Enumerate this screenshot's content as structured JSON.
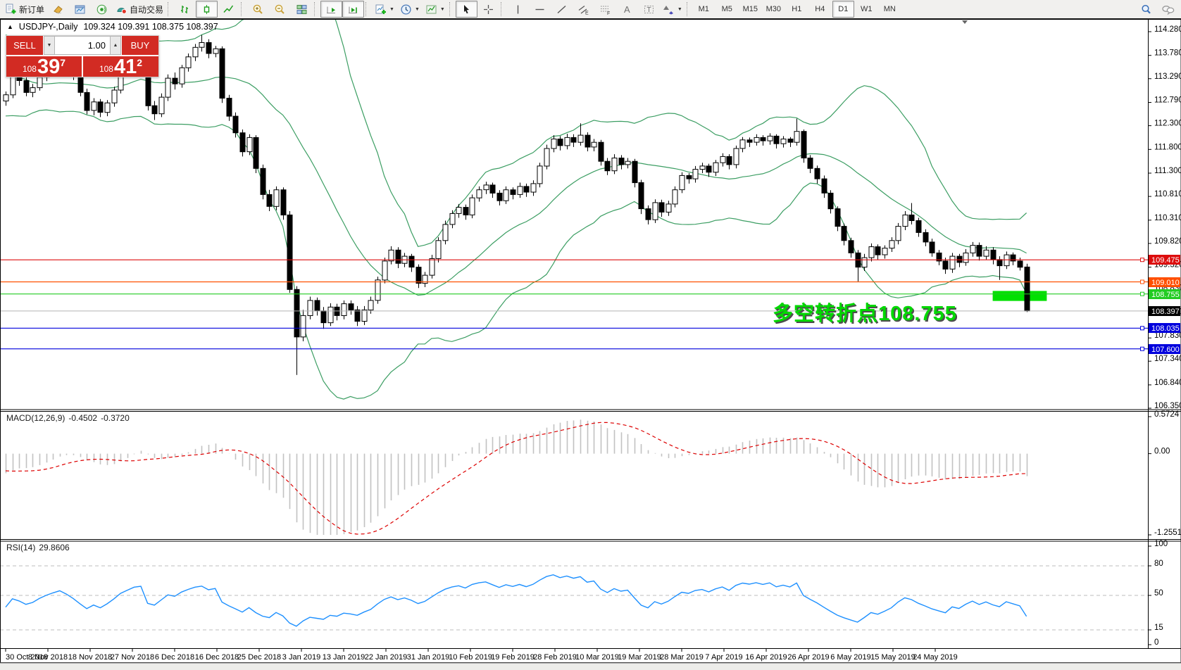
{
  "toolbar": {
    "new_order_label": "新订单",
    "autotrade_label": "自动交易",
    "timeframes": [
      "M1",
      "M5",
      "M15",
      "M30",
      "H1",
      "H4",
      "D1",
      "W1",
      "MN"
    ],
    "active_timeframe": "D1"
  },
  "chart": {
    "title": "USDJPY-,Daily",
    "ohlc_text": "109.324 109.391 108.375 108.397",
    "symbol_marker": "▲",
    "trade_panel": {
      "sell_label": "SELL",
      "buy_label": "BUY",
      "volume": "1.00",
      "bid_prefix": "108",
      "bid_big": "39",
      "bid_sup": "7",
      "ask_prefix": "108",
      "ask_big": "41",
      "ask_sup": "2"
    },
    "annotation": {
      "text": "多空转折点108.755",
      "color": "#00d800"
    },
    "price_axis": {
      "max": 114.28,
      "min": 106.35,
      "ticks": [
        "114.280",
        "113.780",
        "113.290",
        "112.790",
        "112.300",
        "111.800",
        "111.300",
        "110.810",
        "110.310",
        "109.820",
        "109.320",
        "108.830",
        "108.330",
        "107.830",
        "107.340",
        "106.840",
        "106.350"
      ]
    },
    "hlines": [
      {
        "price": 109.475,
        "label": "109.475",
        "color": "#dd0d0d"
      },
      {
        "price": 109.01,
        "label": "109.010",
        "color": "#ff4f00"
      },
      {
        "price": 108.755,
        "label": "108.755",
        "color": "#22cc22"
      },
      {
        "price": 108.035,
        "label": "108.035",
        "color": "#0000dd"
      },
      {
        "price": 107.6,
        "label": "107.600",
        "color": "#0000dd"
      }
    ],
    "current_price": {
      "value": 108.397,
      "label": "108.397",
      "line_color": "#b3b3b3",
      "box_color": "#000000"
    },
    "highlight_box": {
      "candle_from": 146,
      "candle_to": 154,
      "price_top": 108.82,
      "price_bottom": 108.61,
      "color": "#00e000"
    },
    "bollinger": {
      "period": 20,
      "deviation": 2,
      "color": "#3c9e63"
    }
  },
  "indicators": {
    "macd": {
      "label": "MACD(12,26,9)",
      "value": "-0.4502",
      "signal": "-0.3720",
      "max": 0.5724,
      "min": -1.2551,
      "ticks": [
        "0.5724",
        "0.00",
        "-1.2551"
      ],
      "bar_color": "#c2c2c2",
      "signal_color": "#dd0000"
    },
    "rsi": {
      "label": "RSI(14)",
      "value": "29.8606",
      "ticks": [
        "100",
        "80",
        "50",
        "15",
        "0"
      ],
      "levels": [
        80,
        50,
        15
      ],
      "color": "#1e90ff",
      "level_color": "#bdbdbd"
    }
  },
  "time_axis": {
    "labels": [
      "30 Oct 2018",
      "8 Nov 2018",
      "18 Nov 2018",
      "27 Nov 2018",
      "6 Dec 2018",
      "16 Dec 2018",
      "25 Dec 2018",
      "3 Jan 2019",
      "13 Jan 2019",
      "22 Jan 2019",
      "31 Jan 2019",
      "10 Feb 2019",
      "19 Feb 2019",
      "28 Feb 2019",
      "10 Mar 2019",
      "19 Mar 2019",
      "28 Mar 2019",
      "7 Apr 2019",
      "16 Apr 2019",
      "26 Apr 2019",
      "6 May 2019",
      "15 May 2019",
      "24 May 2019"
    ]
  },
  "warmup_closes": [
    114.1,
    113.85,
    113.6,
    113.95,
    114.2,
    113.9,
    113.65,
    113.4,
    113.55,
    113.7,
    113.45,
    113.2,
    112.95,
    113.1,
    113.35,
    113.15,
    112.9,
    112.7,
    112.85,
    112.75
  ],
  "candles": [
    [
      112.82,
      113.02,
      112.72,
      112.95
    ],
    [
      112.95,
      113.47,
      112.88,
      113.4
    ],
    [
      113.4,
      113.5,
      113.14,
      113.25
    ],
    [
      113.25,
      113.32,
      112.92,
      113.0
    ],
    [
      113.0,
      113.18,
      112.9,
      113.1
    ],
    [
      113.1,
      113.4,
      113.04,
      113.32
    ],
    [
      113.32,
      113.58,
      113.24,
      113.5
    ],
    [
      113.5,
      113.72,
      113.38,
      113.65
    ],
    [
      113.65,
      113.9,
      113.56,
      113.78
    ],
    [
      113.78,
      113.85,
      113.5,
      113.6
    ],
    [
      113.6,
      113.68,
      113.26,
      113.35
    ],
    [
      113.35,
      113.42,
      112.92,
      113.0
    ],
    [
      113.0,
      113.08,
      112.54,
      112.62
    ],
    [
      112.62,
      112.88,
      112.52,
      112.8
    ],
    [
      112.8,
      112.86,
      112.48,
      112.58
    ],
    [
      112.58,
      112.84,
      112.5,
      112.78
    ],
    [
      112.78,
      113.12,
      112.7,
      113.05
    ],
    [
      113.05,
      113.48,
      112.98,
      113.4
    ],
    [
      113.4,
      113.7,
      113.32,
      113.62
    ],
    [
      113.62,
      113.92,
      113.54,
      113.85
    ],
    [
      113.85,
      113.99,
      113.76,
      113.92
    ],
    [
      113.92,
      113.98,
      112.62,
      112.72
    ],
    [
      112.72,
      112.82,
      112.42,
      112.55
    ],
    [
      112.55,
      112.98,
      112.48,
      112.9
    ],
    [
      112.9,
      113.38,
      112.82,
      113.3
    ],
    [
      113.3,
      113.42,
      113.06,
      113.18
    ],
    [
      113.18,
      113.58,
      113.1,
      113.52
    ],
    [
      113.52,
      113.82,
      113.44,
      113.75
    ],
    [
      113.75,
      114.02,
      113.66,
      113.95
    ],
    [
      113.95,
      114.21,
      113.86,
      114.05
    ],
    [
      114.05,
      114.12,
      113.72,
      113.82
    ],
    [
      113.82,
      113.98,
      113.74,
      113.92
    ],
    [
      113.92,
      113.97,
      112.78,
      112.88
    ],
    [
      112.88,
      112.95,
      112.4,
      112.5
    ],
    [
      112.5,
      112.58,
      112.05,
      112.15
    ],
    [
      112.15,
      112.22,
      111.65,
      111.75
    ],
    [
      111.75,
      112.12,
      111.68,
      112.05
    ],
    [
      112.05,
      112.1,
      111.3,
      111.4
    ],
    [
      111.4,
      111.48,
      110.75,
      110.85
    ],
    [
      110.85,
      110.95,
      110.5,
      110.6
    ],
    [
      110.6,
      111.02,
      110.52,
      110.95
    ],
    [
      110.95,
      111.0,
      110.32,
      110.42
    ],
    [
      110.42,
      110.5,
      108.78,
      108.85
    ],
    [
      108.85,
      108.92,
      107.05,
      107.85
    ],
    [
      107.85,
      108.42,
      107.76,
      108.3
    ],
    [
      108.3,
      108.7,
      108.22,
      108.62
    ],
    [
      108.62,
      108.68,
      108.3,
      108.4
    ],
    [
      108.4,
      108.48,
      108.02,
      108.15
    ],
    [
      108.15,
      108.56,
      108.08,
      108.48
    ],
    [
      108.48,
      108.55,
      108.2,
      108.3
    ],
    [
      108.3,
      108.62,
      108.22,
      108.55
    ],
    [
      108.55,
      108.62,
      108.32,
      108.42
    ],
    [
      108.42,
      108.5,
      108.08,
      108.18
    ],
    [
      108.18,
      108.5,
      108.1,
      108.42
    ],
    [
      108.42,
      108.7,
      108.34,
      108.62
    ],
    [
      108.62,
      109.12,
      108.55,
      109.05
    ],
    [
      109.05,
      109.52,
      108.98,
      109.45
    ],
    [
      109.45,
      109.76,
      109.38,
      109.68
    ],
    [
      109.68,
      109.74,
      109.3,
      109.4
    ],
    [
      109.4,
      109.62,
      109.32,
      109.55
    ],
    [
      109.55,
      109.6,
      109.22,
      109.32
    ],
    [
      109.32,
      109.38,
      108.88,
      108.98
    ],
    [
      108.98,
      109.22,
      108.9,
      109.15
    ],
    [
      109.15,
      109.58,
      109.08,
      109.5
    ],
    [
      109.5,
      109.95,
      109.42,
      109.88
    ],
    [
      109.88,
      110.3,
      109.8,
      110.22
    ],
    [
      110.22,
      110.52,
      110.14,
      110.45
    ],
    [
      110.45,
      110.65,
      110.36,
      110.58
    ],
    [
      110.58,
      110.64,
      110.32,
      110.42
    ],
    [
      110.42,
      110.85,
      110.35,
      110.78
    ],
    [
      110.78,
      111.02,
      110.7,
      110.95
    ],
    [
      110.95,
      111.12,
      110.86,
      111.05
    ],
    [
      111.05,
      111.1,
      110.78,
      110.88
    ],
    [
      110.88,
      110.94,
      110.62,
      110.72
    ],
    [
      110.72,
      111.02,
      110.65,
      110.95
    ],
    [
      110.95,
      111.0,
      110.75,
      110.85
    ],
    [
      110.85,
      111.1,
      110.78,
      111.02
    ],
    [
      111.02,
      111.08,
      110.8,
      110.9
    ],
    [
      110.9,
      111.15,
      110.82,
      111.08
    ],
    [
      111.08,
      111.52,
      111.0,
      111.45
    ],
    [
      111.45,
      111.9,
      111.38,
      111.82
    ],
    [
      111.82,
      112.1,
      111.74,
      112.02
    ],
    [
      112.02,
      112.08,
      111.78,
      111.88
    ],
    [
      111.88,
      112.13,
      111.8,
      112.05
    ],
    [
      112.05,
      112.12,
      111.85,
      111.95
    ],
    [
      111.95,
      112.35,
      111.88,
      112.1
    ],
    [
      112.1,
      112.16,
      111.76,
      111.85
    ],
    [
      111.85,
      112.02,
      111.76,
      111.95
    ],
    [
      111.95,
      112.0,
      111.46,
      111.55
    ],
    [
      111.55,
      111.62,
      111.26,
      111.35
    ],
    [
      111.35,
      111.7,
      111.28,
      111.62
    ],
    [
      111.62,
      111.68,
      111.38,
      111.48
    ],
    [
      111.48,
      111.62,
      111.4,
      111.55
    ],
    [
      111.55,
      111.6,
      111.0,
      111.1
    ],
    [
      111.1,
      111.16,
      110.44,
      110.55
    ],
    [
      110.55,
      110.62,
      110.22,
      110.32
    ],
    [
      110.32,
      110.75,
      110.25,
      110.68
    ],
    [
      110.68,
      110.74,
      110.38,
      110.48
    ],
    [
      110.48,
      110.72,
      110.4,
      110.65
    ],
    [
      110.65,
      111.02,
      110.58,
      110.95
    ],
    [
      110.95,
      111.32,
      110.88,
      111.25
    ],
    [
      111.25,
      111.3,
      111.08,
      111.18
    ],
    [
      111.18,
      111.45,
      111.1,
      111.38
    ],
    [
      111.38,
      111.52,
      111.3,
      111.45
    ],
    [
      111.45,
      111.5,
      111.22,
      111.32
    ],
    [
      111.32,
      111.58,
      111.24,
      111.52
    ],
    [
      111.52,
      111.72,
      111.44,
      111.65
    ],
    [
      111.65,
      111.7,
      111.38,
      111.48
    ],
    [
      111.48,
      111.88,
      111.4,
      111.82
    ],
    [
      111.82,
      112.06,
      111.74,
      112.0
    ],
    [
      112.0,
      112.05,
      111.85,
      111.95
    ],
    [
      111.95,
      112.12,
      111.88,
      112.05
    ],
    [
      112.05,
      112.1,
      111.88,
      111.98
    ],
    [
      111.98,
      112.14,
      111.9,
      112.08
    ],
    [
      112.08,
      112.12,
      111.82,
      111.92
    ],
    [
      111.92,
      112.08,
      111.84,
      112.02
    ],
    [
      112.02,
      112.06,
      111.85,
      111.95
    ],
    [
      111.95,
      112.45,
      111.88,
      112.18
    ],
    [
      112.18,
      112.22,
      111.52,
      111.62
    ],
    [
      111.62,
      111.68,
      111.3,
      111.4
    ],
    [
      111.4,
      111.46,
      111.08,
      111.18
    ],
    [
      111.18,
      111.25,
      110.78,
      110.88
    ],
    [
      110.88,
      110.94,
      110.45,
      110.55
    ],
    [
      110.55,
      110.6,
      110.08,
      110.18
    ],
    [
      110.18,
      110.24,
      109.78,
      109.88
    ],
    [
      109.88,
      109.94,
      109.52,
      109.62
    ],
    [
      109.62,
      109.68,
      109.02,
      109.32
    ],
    [
      109.32,
      109.6,
      109.24,
      109.52
    ],
    [
      109.52,
      109.82,
      109.44,
      109.75
    ],
    [
      109.75,
      109.8,
      109.48,
      109.58
    ],
    [
      109.58,
      109.78,
      109.5,
      109.72
    ],
    [
      109.72,
      109.95,
      109.64,
      109.88
    ],
    [
      109.88,
      110.25,
      109.8,
      110.18
    ],
    [
      110.18,
      110.5,
      110.1,
      110.42
    ],
    [
      110.42,
      110.67,
      110.22,
      110.3
    ],
    [
      110.3,
      110.36,
      109.96,
      110.05
    ],
    [
      110.05,
      110.12,
      109.76,
      109.85
    ],
    [
      109.85,
      109.92,
      109.54,
      109.62
    ],
    [
      109.62,
      109.68,
      109.36,
      109.45
    ],
    [
      109.45,
      109.52,
      109.18,
      109.28
    ],
    [
      109.28,
      109.62,
      109.2,
      109.55
    ],
    [
      109.55,
      109.6,
      109.32,
      109.42
    ],
    [
      109.42,
      109.7,
      109.35,
      109.62
    ],
    [
      109.62,
      109.85,
      109.54,
      109.78
    ],
    [
      109.78,
      109.84,
      109.46,
      109.55
    ],
    [
      109.55,
      109.76,
      109.48,
      109.68
    ],
    [
      109.68,
      109.74,
      109.38,
      109.48
    ],
    [
      109.48,
      109.55,
      109.05,
      109.35
    ],
    [
      109.35,
      109.65,
      109.28,
      109.58
    ],
    [
      109.58,
      109.63,
      109.36,
      109.45
    ],
    [
      109.45,
      109.52,
      109.25,
      109.32
    ],
    [
      109.324,
      109.391,
      108.375,
      108.397
    ]
  ]
}
